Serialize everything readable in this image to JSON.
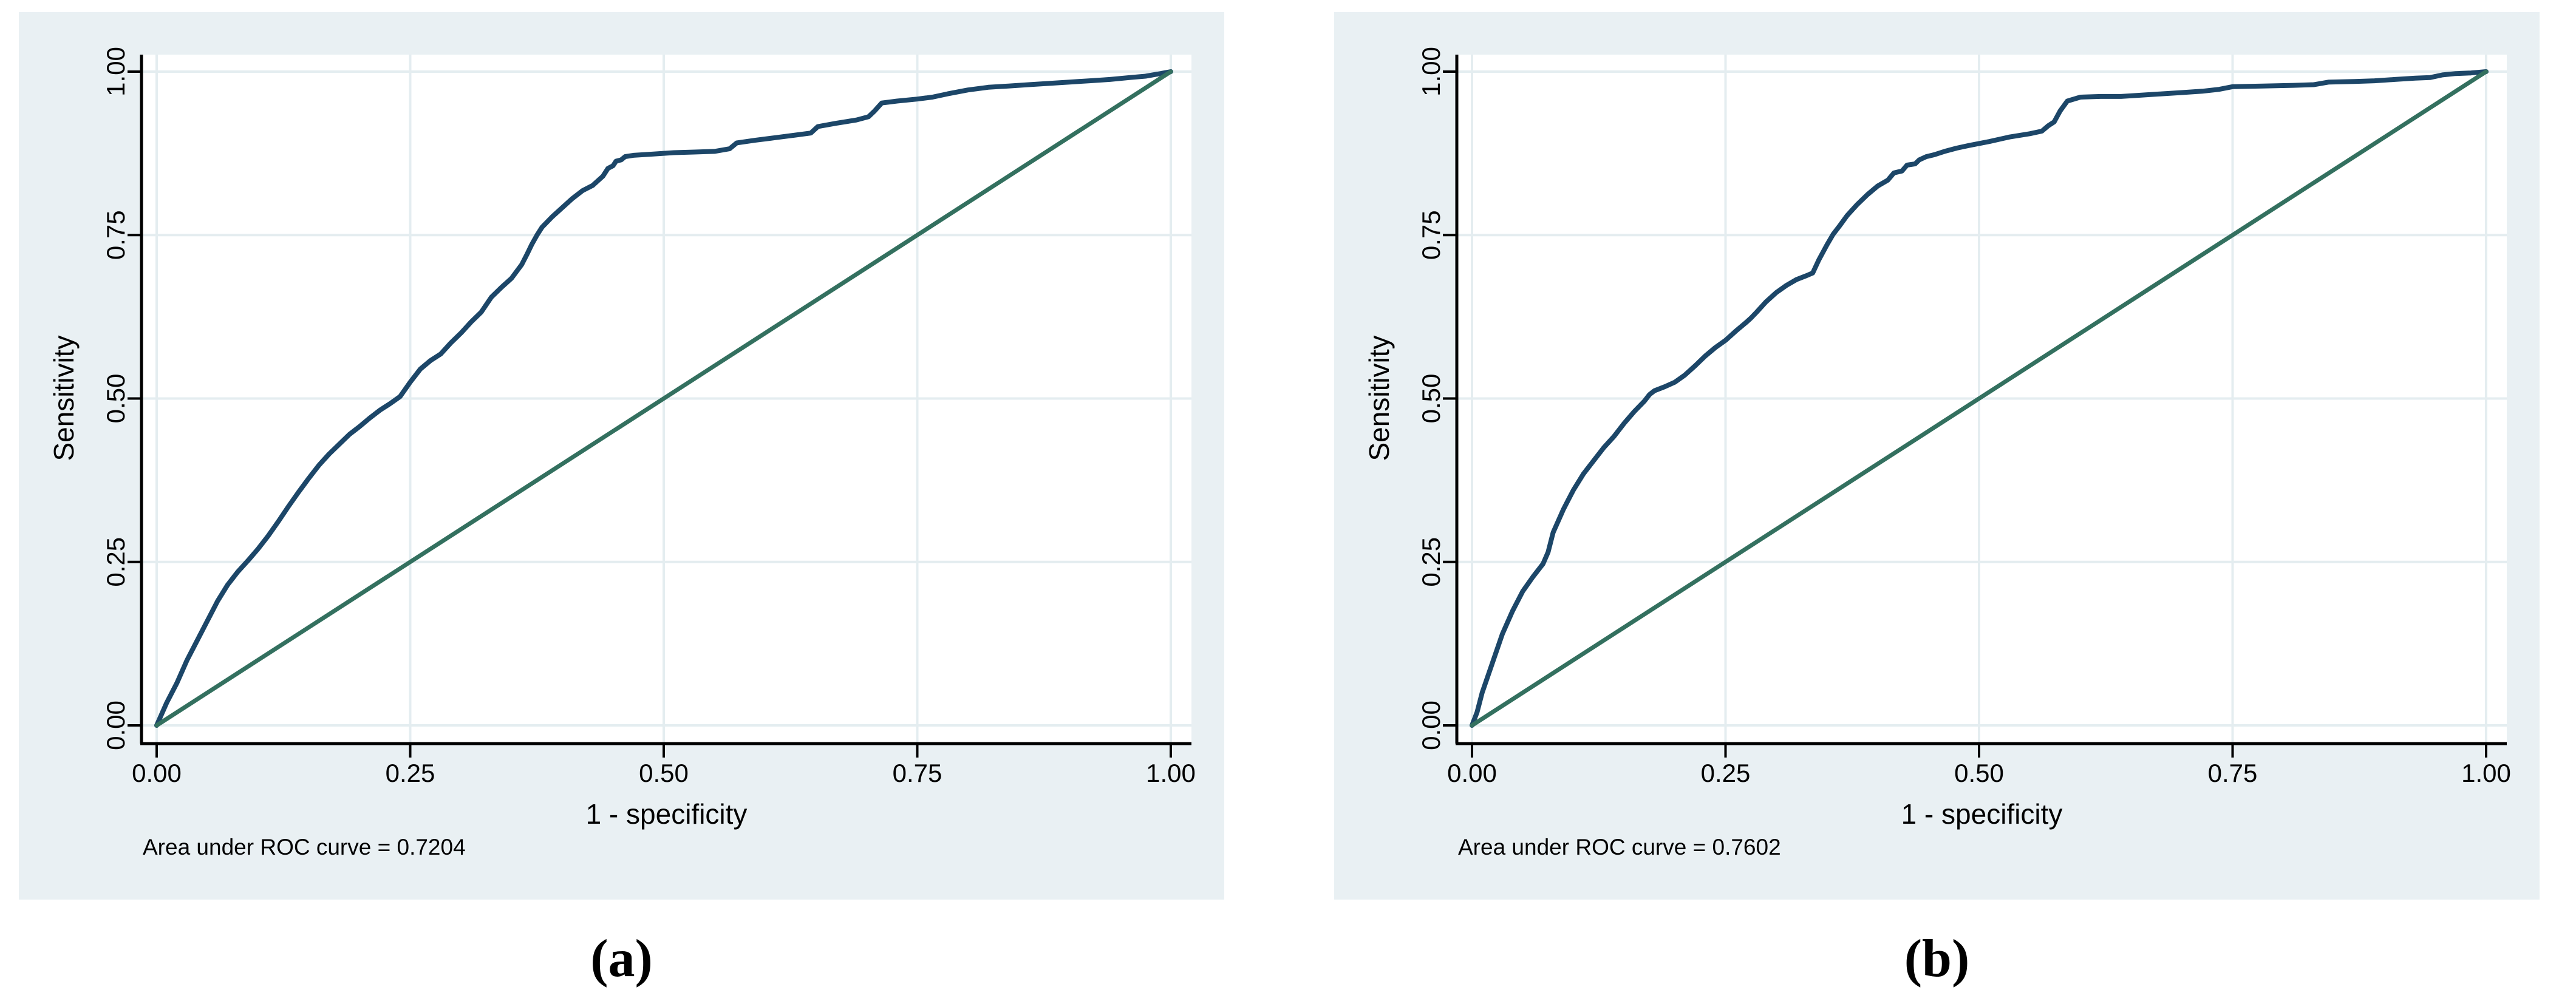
{
  "colors": {
    "panel_bg": "#e9f0f3",
    "plot_bg": "#ffffff",
    "gridline": "#e4edf0",
    "axis": "#000000",
    "text": "#000000",
    "roc_line": "#1c4668",
    "reference_line": "#33705f"
  },
  "chart_data": [
    {
      "type": "line",
      "title": "",
      "caption": "(a)",
      "xlabel": "1 - specificity",
      "ylabel": "Sensitivity",
      "annotation": "Area under ROC curve = 0.7204",
      "auc_value": 0.7204,
      "xlim": [
        0,
        1
      ],
      "ylim": [
        0,
        1
      ],
      "grid": true,
      "legend_position": "none",
      "x_tick_values": [
        0,
        0.25,
        0.5,
        0.75,
        1
      ],
      "x_tick_labels": [
        "0.00",
        "0.25",
        "0.50",
        "0.75",
        "1.00"
      ],
      "y_tick_values": [
        0,
        0.25,
        0.5,
        0.75,
        1
      ],
      "y_tick_labels": [
        "0.00",
        "0.25",
        "0.50",
        "0.75",
        "1.00"
      ],
      "series": [
        {
          "name": "ROC curve",
          "color": "#1c4668",
          "width": 8,
          "points": [
            [
              0,
              0
            ],
            [
              0.01,
              0.035
            ],
            [
              0.02,
              0.065
            ],
            [
              0.03,
              0.1
            ],
            [
              0.04,
              0.13
            ],
            [
              0.05,
              0.16
            ],
            [
              0.06,
              0.19
            ],
            [
              0.07,
              0.215
            ],
            [
              0.08,
              0.235
            ],
            [
              0.09,
              0.252
            ],
            [
              0.1,
              0.27
            ],
            [
              0.11,
              0.29
            ],
            [
              0.12,
              0.312
            ],
            [
              0.13,
              0.335
            ],
            [
              0.14,
              0.357
            ],
            [
              0.15,
              0.378
            ],
            [
              0.16,
              0.398
            ],
            [
              0.17,
              0.415
            ],
            [
              0.18,
              0.43
            ],
            [
              0.19,
              0.445
            ],
            [
              0.2,
              0.457
            ],
            [
              0.21,
              0.47
            ],
            [
              0.22,
              0.482
            ],
            [
              0.23,
              0.492
            ],
            [
              0.24,
              0.503
            ],
            [
              0.25,
              0.525
            ],
            [
              0.26,
              0.545
            ],
            [
              0.27,
              0.558
            ],
            [
              0.28,
              0.568
            ],
            [
              0.29,
              0.585
            ],
            [
              0.3,
              0.6
            ],
            [
              0.31,
              0.617
            ],
            [
              0.32,
              0.632
            ],
            [
              0.33,
              0.655
            ],
            [
              0.34,
              0.67
            ],
            [
              0.35,
              0.684
            ],
            [
              0.36,
              0.705
            ],
            [
              0.365,
              0.72
            ],
            [
              0.37,
              0.736
            ],
            [
              0.375,
              0.75
            ],
            [
              0.38,
              0.762
            ],
            [
              0.39,
              0.778
            ],
            [
              0.4,
              0.792
            ],
            [
              0.41,
              0.806
            ],
            [
              0.42,
              0.818
            ],
            [
              0.43,
              0.826
            ],
            [
              0.44,
              0.84
            ],
            [
              0.445,
              0.852
            ],
            [
              0.45,
              0.856
            ],
            [
              0.453,
              0.863
            ],
            [
              0.458,
              0.865
            ],
            [
              0.462,
              0.87
            ],
            [
              0.47,
              0.872
            ],
            [
              0.49,
              0.874
            ],
            [
              0.51,
              0.876
            ],
            [
              0.53,
              0.877
            ],
            [
              0.55,
              0.878
            ],
            [
              0.565,
              0.882
            ],
            [
              0.572,
              0.891
            ],
            [
              0.59,
              0.895
            ],
            [
              0.61,
              0.899
            ],
            [
              0.63,
              0.903
            ],
            [
              0.645,
              0.906
            ],
            [
              0.652,
              0.916
            ],
            [
              0.67,
              0.921
            ],
            [
              0.69,
              0.926
            ],
            [
              0.702,
              0.931
            ],
            [
              0.708,
              0.94
            ],
            [
              0.715,
              0.952
            ],
            [
              0.73,
              0.955
            ],
            [
              0.75,
              0.958
            ],
            [
              0.765,
              0.961
            ],
            [
              0.78,
              0.966
            ],
            [
              0.8,
              0.972
            ],
            [
              0.82,
              0.976
            ],
            [
              0.84,
              0.978
            ],
            [
              0.86,
              0.98
            ],
            [
              0.88,
              0.982
            ],
            [
              0.9,
              0.984
            ],
            [
              0.92,
              0.986
            ],
            [
              0.94,
              0.988
            ],
            [
              0.96,
              0.991
            ],
            [
              0.975,
              0.993
            ],
            [
              0.99,
              0.997
            ],
            [
              1,
              1
            ]
          ]
        },
        {
          "name": "Reference line",
          "color": "#33705f",
          "width": 7,
          "points": [
            [
              0,
              0
            ],
            [
              1,
              1
            ]
          ]
        }
      ]
    },
    {
      "type": "line",
      "title": "",
      "caption": "(b)",
      "xlabel": "1 - specificity",
      "ylabel": "Sensitivity",
      "annotation": "Area under ROC curve = 0.7602",
      "auc_value": 0.7602,
      "xlim": [
        0,
        1
      ],
      "ylim": [
        0,
        1
      ],
      "grid": true,
      "legend_position": "none",
      "x_tick_values": [
        0,
        0.25,
        0.5,
        0.75,
        1
      ],
      "x_tick_labels": [
        "0.00",
        "0.25",
        "0.50",
        "0.75",
        "1.00"
      ],
      "y_tick_values": [
        0,
        0.25,
        0.5,
        0.75,
        1
      ],
      "y_tick_labels": [
        "0.00",
        "0.25",
        "0.50",
        "0.75",
        "1.00"
      ],
      "series": [
        {
          "name": "ROC curve",
          "color": "#1c4668",
          "width": 8,
          "points": [
            [
              0,
              0
            ],
            [
              0.005,
              0.02
            ],
            [
              0.01,
              0.05
            ],
            [
              0.02,
              0.095
            ],
            [
              0.03,
              0.14
            ],
            [
              0.04,
              0.175
            ],
            [
              0.05,
              0.205
            ],
            [
              0.06,
              0.227
            ],
            [
              0.07,
              0.247
            ],
            [
              0.075,
              0.265
            ],
            [
              0.08,
              0.295
            ],
            [
              0.09,
              0.33
            ],
            [
              0.095,
              0.345
            ],
            [
              0.1,
              0.36
            ],
            [
              0.11,
              0.385
            ],
            [
              0.12,
              0.405
            ],
            [
              0.13,
              0.425
            ],
            [
              0.14,
              0.442
            ],
            [
              0.15,
              0.462
            ],
            [
              0.16,
              0.48
            ],
            [
              0.17,
              0.496
            ],
            [
              0.175,
              0.506
            ],
            [
              0.18,
              0.512
            ],
            [
              0.19,
              0.518
            ],
            [
              0.2,
              0.525
            ],
            [
              0.21,
              0.536
            ],
            [
              0.22,
              0.55
            ],
            [
              0.23,
              0.565
            ],
            [
              0.24,
              0.578
            ],
            [
              0.25,
              0.589
            ],
            [
              0.26,
              0.603
            ],
            [
              0.27,
              0.616
            ],
            [
              0.275,
              0.623
            ],
            [
              0.28,
              0.631
            ],
            [
              0.29,
              0.648
            ],
            [
              0.3,
              0.662
            ],
            [
              0.31,
              0.673
            ],
            [
              0.32,
              0.682
            ],
            [
              0.33,
              0.688
            ],
            [
              0.336,
              0.692
            ],
            [
              0.342,
              0.712
            ],
            [
              0.35,
              0.735
            ],
            [
              0.356,
              0.751
            ],
            [
              0.362,
              0.763
            ],
            [
              0.37,
              0.78
            ],
            [
              0.38,
              0.797
            ],
            [
              0.39,
              0.812
            ],
            [
              0.4,
              0.825
            ],
            [
              0.41,
              0.834
            ],
            [
              0.416,
              0.845
            ],
            [
              0.424,
              0.848
            ],
            [
              0.429,
              0.857
            ],
            [
              0.437,
              0.859
            ],
            [
              0.441,
              0.865
            ],
            [
              0.448,
              0.87
            ],
            [
              0.456,
              0.873
            ],
            [
              0.466,
              0.878
            ],
            [
              0.478,
              0.883
            ],
            [
              0.49,
              0.887
            ],
            [
              0.51,
              0.893
            ],
            [
              0.53,
              0.9
            ],
            [
              0.55,
              0.905
            ],
            [
              0.562,
              0.909
            ],
            [
              0.568,
              0.917
            ],
            [
              0.574,
              0.923
            ],
            [
              0.58,
              0.94
            ],
            [
              0.587,
              0.955
            ],
            [
              0.6,
              0.961
            ],
            [
              0.62,
              0.962
            ],
            [
              0.64,
              0.962
            ],
            [
              0.66,
              0.964
            ],
            [
              0.68,
              0.966
            ],
            [
              0.7,
              0.968
            ],
            [
              0.72,
              0.97
            ],
            [
              0.737,
              0.973
            ],
            [
              0.75,
              0.977
            ],
            [
              0.78,
              0.978
            ],
            [
              0.81,
              0.979
            ],
            [
              0.83,
              0.98
            ],
            [
              0.845,
              0.984
            ],
            [
              0.87,
              0.985
            ],
            [
              0.89,
              0.986
            ],
            [
              0.91,
              0.988
            ],
            [
              0.93,
              0.99
            ],
            [
              0.945,
              0.991
            ],
            [
              0.957,
              0.995
            ],
            [
              0.97,
              0.997
            ],
            [
              0.985,
              0.998
            ],
            [
              1,
              1
            ]
          ]
        },
        {
          "name": "Reference line",
          "color": "#33705f",
          "width": 7,
          "points": [
            [
              0,
              0
            ],
            [
              1,
              1
            ]
          ]
        }
      ]
    }
  ]
}
